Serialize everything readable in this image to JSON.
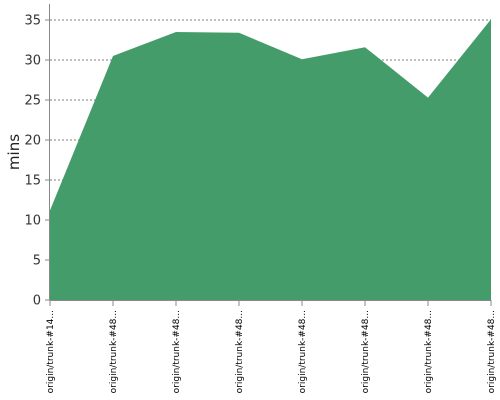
{
  "chart_data": {
    "type": "area",
    "title": "",
    "xlabel": "",
    "ylabel": "mins",
    "ylim": [
      0,
      35
    ],
    "yticks": [
      0,
      5,
      10,
      15,
      20,
      25,
      30,
      35
    ],
    "grid": true,
    "categories": [
      "origin/trunk-#14...",
      "origin/trunk-#48...",
      "origin/trunk-#48...",
      "origin/trunk-#48...",
      "origin/trunk-#48...",
      "origin/trunk-#48...",
      "origin/trunk-#48...",
      "origin/trunk-#48..."
    ],
    "series": [
      {
        "values": [
          11.2,
          30.5,
          33.5,
          33.4,
          30.1,
          31.6,
          25.3,
          35.1
        ]
      }
    ],
    "colors": {
      "fill": "#459c6b",
      "grid": "#555555",
      "axis": "#888888"
    }
  }
}
